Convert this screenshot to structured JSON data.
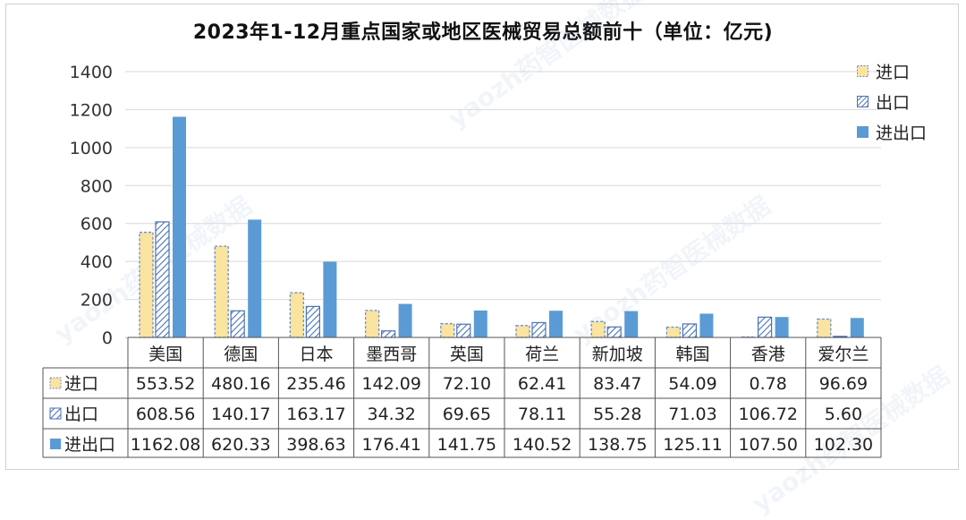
{
  "chart_data": {
    "type": "bar",
    "title": "2023年1-12月重点国家或地区医械贸易总额前十（单位：亿元)",
    "categories": [
      "美国",
      "德国",
      "日本",
      "墨西哥",
      "英国",
      "荷兰",
      "新加坡",
      "韩国",
      "香港",
      "爱尔兰"
    ],
    "series": [
      {
        "name": "进口",
        "values": [
          553.52,
          480.16,
          235.46,
          142.09,
          72.1,
          62.41,
          83.47,
          54.09,
          0.78,
          96.69
        ],
        "labels": [
          "553.52",
          "480.16",
          "235.46",
          "142.09",
          "72.10",
          "62.41",
          "83.47",
          "54.09",
          "0.78",
          "96.69"
        ],
        "fill": "#fbe3a0",
        "stroke": "#6b8fc7",
        "pattern": "dashed"
      },
      {
        "name": "出口",
        "values": [
          608.56,
          140.17,
          163.17,
          34.32,
          69.65,
          78.11,
          55.28,
          71.03,
          106.72,
          5.6
        ],
        "labels": [
          "608.56",
          "140.17",
          "163.17",
          "34.32",
          "69.65",
          "78.11",
          "55.28",
          "71.03",
          "106.72",
          "5.60"
        ],
        "fill": "#ffffff",
        "stroke": "#4a72b8",
        "pattern": "hatch"
      },
      {
        "name": "进出口",
        "values": [
          1162.08,
          620.33,
          398.63,
          176.41,
          141.75,
          140.52,
          138.75,
          125.11,
          107.5,
          102.3
        ],
        "labels": [
          "1162.08",
          "620.33",
          "398.63",
          "176.41",
          "141.75",
          "140.52",
          "138.75",
          "125.11",
          "107.50",
          "102.30"
        ],
        "fill": "#5b9bd5",
        "stroke": "#5b9bd5",
        "pattern": "solid"
      }
    ],
    "yticks": [
      "0",
      "200",
      "400",
      "600",
      "800",
      "1000",
      "1200",
      "1400"
    ],
    "ylim": [
      0,
      1400
    ],
    "grid": true,
    "legend_position": "top-right",
    "data_table": true
  },
  "watermark_text": "yaozh药智医械数据"
}
